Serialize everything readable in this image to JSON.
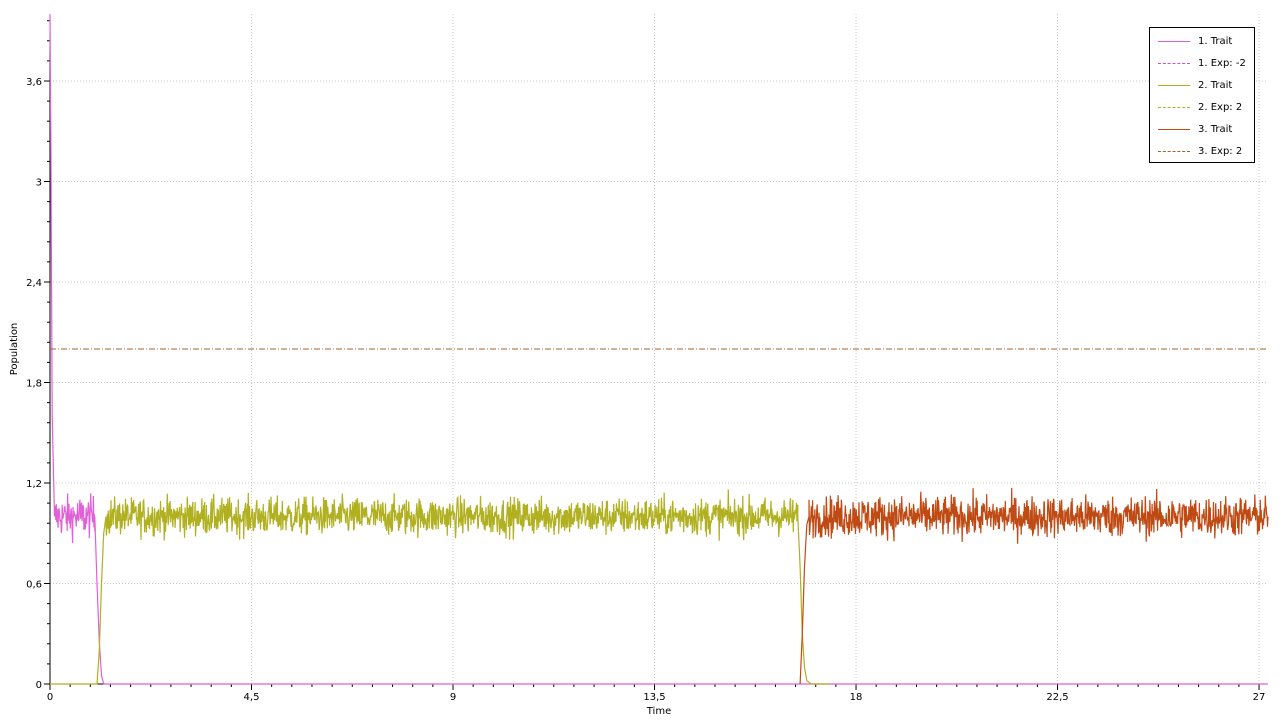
{
  "chart_data": {
    "type": "line",
    "title": "",
    "xlabel": "Time",
    "ylabel": "Population",
    "xlim": [
      0,
      27.2
    ],
    "ylim": [
      0,
      4.0
    ],
    "x_ticks": [
      0,
      4.5,
      9,
      13.5,
      18,
      22.5,
      27
    ],
    "x_tick_labels": [
      "0",
      "4,5",
      "9",
      "13,5",
      "18",
      "22,5",
      "27"
    ],
    "y_ticks": [
      0,
      0.6,
      1.2,
      1.8,
      2.4,
      3.0,
      3.6
    ],
    "y_tick_labels": [
      "0",
      "0,6",
      "1,2",
      "1,8",
      "2,4",
      "3",
      "3,6"
    ],
    "grid": true,
    "legend_position": "top-right",
    "series": [
      {
        "name": "1. Trait",
        "style": "solid",
        "color": "#e060d8",
        "segments": [
          {
            "x": [
              0,
              0.02,
              0.05,
              0.1
            ],
            "y": [
              4.0,
              3.2,
              1.6,
              1.0
            ]
          },
          {
            "start": 0.1,
            "end": 1.0,
            "mean": 1.0,
            "noise": 0.06
          },
          {
            "x": [
              1.0,
              1.05,
              1.1,
              1.15,
              1.2,
              1.3
            ],
            "y": [
              1.0,
              0.6,
              0.25,
              0.05,
              0.0,
              0.0
            ]
          },
          {
            "x": [
              1.3,
              27.2
            ],
            "y": [
              0.0,
              0.0
            ]
          }
        ]
      },
      {
        "name": "1. Exp: -2",
        "style": "dashdot",
        "color": "#d050d0",
        "y": -2
      },
      {
        "name": "2. Trait",
        "style": "solid",
        "color": "#b0b020",
        "segments": [
          {
            "x": [
              0,
              1.05
            ],
            "y": [
              0,
              0
            ]
          },
          {
            "x": [
              1.05,
              1.1,
              1.15,
              1.2,
              1.25
            ],
            "y": [
              0.0,
              0.2,
              0.6,
              0.9,
              1.0
            ]
          },
          {
            "start": 1.25,
            "end": 16.7,
            "mean": 1.0,
            "noise": 0.055
          },
          {
            "x": [
              16.7,
              16.75,
              16.8,
              16.85,
              16.9,
              17.0
            ],
            "y": [
              1.0,
              0.7,
              0.3,
              0.1,
              0.02,
              0.0
            ]
          },
          {
            "x": [
              17.0,
              17.4
            ],
            "y": [
              0.0,
              0.0
            ]
          }
        ]
      },
      {
        "name": "2. Exp: 2",
        "style": "dashdot",
        "color": "#b0b020",
        "y": 2
      },
      {
        "name": "3. Trait",
        "style": "solid",
        "color": "#c04a14",
        "segments": [
          {
            "x": [
              16.75,
              16.8,
              16.85,
              16.9,
              16.95
            ],
            "y": [
              0.0,
              0.3,
              0.7,
              0.95,
              1.0
            ]
          },
          {
            "start": 16.95,
            "end": 27.2,
            "mean": 1.0,
            "noise": 0.06
          }
        ]
      },
      {
        "name": "3. Exp: 2",
        "style": "dashdot",
        "color": "#a06428",
        "y": 2
      }
    ]
  }
}
